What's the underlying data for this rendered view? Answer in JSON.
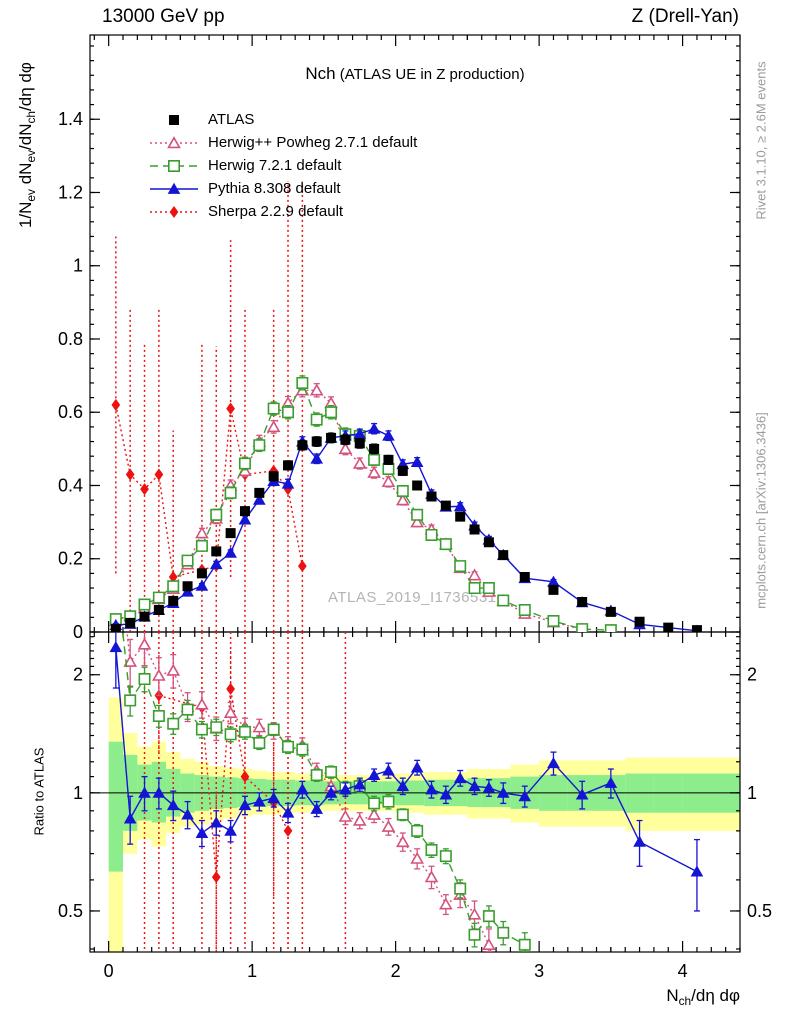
{
  "header": {
    "left": "13000 GeV pp",
    "right": "Z (Drell-Yan)"
  },
  "plot_title": {
    "main": "Nch",
    "paren": " (ATLAS UE in Z production)"
  },
  "watermark": "ATLAS_2019_I1736531",
  "side_notes": {
    "rivet": "Rivet 3.1.10, ≥ 2.6M events",
    "mcplots": "mcplots.cern.ch [arXiv:1306.3436]"
  },
  "colors": {
    "atlas": "#000000",
    "herwigpp": "#d4537c",
    "herwig7": "#3a9d2f",
    "pythia": "#1414d4",
    "sherpa": "#ed1212",
    "band_yellow": "#ffff9c",
    "band_green": "#8ded8d",
    "watermark_gray": "#b4b4b4",
    "note_gray": "#9b9b9b"
  },
  "chart_data": {
    "type": "line",
    "title": "Nch (ATLAS UE in Z production)",
    "xlabel": "N_ch/deta dphi",
    "ylabel": "1/N_ev dN_ev/dN_ch/deta dphi",
    "ratio_label": "Ratio to ATLAS",
    "xlabel_segs": [
      [
        "N"
      ],
      [
        "ch",
        "sub"
      ],
      [
        "/dη dφ"
      ]
    ],
    "ylabel_segs": [
      [
        "1/N"
      ],
      [
        "ev",
        "sub"
      ],
      [
        " dN"
      ],
      [
        "ev",
        "sub"
      ],
      [
        "/dN"
      ],
      [
        "ch",
        "sub"
      ],
      [
        "/dη dφ"
      ]
    ],
    "x_range": [
      -0.13,
      4.4
    ],
    "y_range_main": [
      0,
      1.63
    ],
    "ratio_range": [
      0.393,
      2.57
    ],
    "x_ticks": [
      0,
      1,
      2,
      3,
      4
    ],
    "x_minor_step": 0.1,
    "y_ticks_main": [
      0,
      0.2,
      0.4,
      0.6,
      0.8,
      1.0,
      1.2,
      1.4
    ],
    "y_minor_step_main": 0.04,
    "y_ticks_ratio": [
      0.5,
      1,
      2
    ],
    "grid": false,
    "legend_position": "top-left",
    "x": [
      0.05,
      0.15,
      0.25,
      0.35,
      0.45,
      0.55,
      0.65,
      0.75,
      0.85,
      0.95,
      1.05,
      1.15,
      1.25,
      1.35,
      1.45,
      1.55,
      1.65,
      1.75,
      1.85,
      1.95,
      2.05,
      2.15,
      2.25,
      2.35,
      2.45,
      2.55,
      2.65,
      2.75,
      2.9,
      3.1,
      3.3,
      3.5,
      3.7,
      3.9,
      4.1
    ],
    "series": [
      {
        "name": "ATLAS",
        "color": "#000000",
        "marker": "square",
        "filled": true,
        "line": "none",
        "y": [
          0.008,
          0.025,
          0.042,
          0.06,
          0.085,
          0.125,
          0.16,
          0.22,
          0.27,
          0.33,
          0.38,
          0.425,
          0.455,
          0.51,
          0.52,
          0.53,
          0.525,
          0.515,
          0.5,
          0.47,
          0.44,
          0.4,
          0.37,
          0.345,
          0.315,
          0.28,
          0.245,
          0.21,
          0.15,
          0.115,
          0.082,
          0.055,
          0.028,
          0.012,
          0.005
        ],
        "yerr": [
          0.002,
          0.003,
          0.004,
          0.004,
          0.005,
          0.006,
          0.007,
          0.008,
          0.009,
          0.01,
          0.011,
          0.012,
          0.012,
          0.013,
          0.013,
          0.013,
          0.013,
          0.013,
          0.013,
          0.012,
          0.012,
          0.011,
          0.011,
          0.01,
          0.01,
          0.009,
          0.008,
          0.008,
          0.006,
          0.005,
          0.004,
          0.003,
          0.002,
          0.0012,
          0.001
        ]
      },
      {
        "name": "Herwig++ Powheg 2.7.1 default",
        "color": "#d4537c",
        "marker": "triangle",
        "filled": false,
        "line": "dotted",
        "y": [
          0.03,
          0.045,
          0.065,
          0.09,
          0.118,
          0.185,
          0.27,
          0.31,
          0.4,
          0.44,
          0.52,
          0.56,
          0.625,
          0.66,
          0.66,
          0.625,
          0.5,
          0.46,
          0.435,
          0.41,
          0.36,
          0.3,
          0.28,
          0.24,
          0.175,
          0.155,
          0.11,
          0.085,
          0.05,
          0.027,
          0.007,
          null,
          null,
          null,
          null
        ],
        "yerr": [
          0.005,
          0.006,
          0.007,
          0.008,
          0.009,
          0.011,
          0.013,
          0.014,
          0.015,
          0.016,
          0.017,
          0.017,
          0.018,
          0.018,
          0.018,
          0.017,
          0.016,
          0.015,
          0.015,
          0.014,
          0.013,
          0.012,
          0.012,
          0.011,
          0.009,
          0.009,
          0.007,
          0.006,
          0.004,
          0.003,
          0.0015,
          null,
          null,
          null,
          null
        ],
        "ratio": [
          null,
          2.16,
          2.39,
          1.99,
          2.05,
          1.66,
          1.68,
          1.46,
          1.6,
          1.47,
          1.47,
          1.44,
          1.33,
          1.32,
          1.14,
          1.04,
          0.87,
          0.85,
          0.88,
          0.82,
          0.75,
          0.68,
          0.61,
          0.52,
          0.55,
          0.49,
          0.41,
          null,
          null,
          null,
          null,
          null,
          null,
          null,
          null
        ],
        "ratio_err": [
          null,
          0.3,
          0.28,
          0.22,
          0.2,
          0.14,
          0.13,
          0.1,
          0.1,
          0.08,
          0.07,
          0.07,
          0.06,
          0.06,
          0.05,
          0.05,
          0.04,
          0.04,
          0.04,
          0.04,
          0.04,
          0.04,
          0.04,
          0.03,
          0.04,
          0.04,
          0.04,
          null,
          null,
          null,
          null,
          null,
          null,
          null,
          null
        ],
        "ratio_entry": [
          0.1,
          3.2
        ],
        "ratio_exit": [
          2.8,
          0.27
        ]
      },
      {
        "name": "Herwig 7.2.1 default",
        "color": "#3a9d2f",
        "marker": "square",
        "filled": false,
        "line": "dashed",
        "y": [
          0.035,
          0.043,
          0.075,
          0.094,
          0.125,
          0.195,
          0.235,
          0.32,
          0.38,
          0.46,
          0.51,
          0.61,
          0.6,
          0.68,
          0.58,
          0.6,
          0.54,
          0.535,
          0.47,
          0.445,
          0.385,
          0.32,
          0.265,
          0.24,
          0.18,
          0.12,
          0.12,
          0.086,
          0.06,
          0.03,
          0.008,
          0.005,
          null,
          null,
          null
        ],
        "yerr": [
          0.005,
          0.006,
          0.008,
          0.009,
          0.01,
          0.012,
          0.013,
          0.015,
          0.016,
          0.017,
          0.017,
          0.018,
          0.018,
          0.019,
          0.018,
          0.018,
          0.017,
          0.016,
          0.015,
          0.015,
          0.013,
          0.012,
          0.012,
          0.011,
          0.01,
          0.008,
          0.008,
          0.007,
          0.005,
          0.003,
          0.0015,
          0.001,
          null,
          null,
          null
        ],
        "ratio": [
          null,
          1.72,
          1.95,
          1.57,
          1.5,
          1.63,
          1.45,
          1.47,
          1.41,
          1.43,
          1.34,
          1.45,
          1.31,
          1.29,
          1.11,
          1.13,
          1.03,
          1.04,
          0.94,
          0.95,
          0.88,
          0.8,
          0.715,
          0.69,
          0.57,
          0.435,
          0.485,
          0.44,
          0.41,
          null,
          null,
          null,
          null,
          null,
          null
        ],
        "ratio_err": [
          null,
          0.15,
          0.14,
          0.1,
          0.09,
          0.09,
          0.07,
          0.07,
          0.06,
          0.06,
          0.05,
          0.05,
          0.05,
          0.05,
          0.04,
          0.04,
          0.04,
          0.04,
          0.04,
          0.04,
          0.03,
          0.03,
          0.03,
          0.03,
          0.03,
          0.03,
          0.03,
          0.03,
          0.03,
          null,
          null,
          null,
          null,
          null,
          null
        ],
        "ratio_entry": [
          0.07,
          3.2
        ],
        "ratio_exit": [
          3.02,
          0.28
        ]
      },
      {
        "name": "Pythia 8.308 default",
        "color": "#1414d4",
        "marker": "triangle",
        "filled": true,
        "line": "solid",
        "y": [
          0.019,
          0.022,
          0.042,
          0.06,
          0.079,
          0.11,
          0.126,
          0.185,
          0.216,
          0.307,
          0.361,
          0.412,
          0.405,
          0.52,
          0.473,
          0.53,
          0.536,
          0.541,
          0.555,
          0.536,
          0.458,
          0.464,
          0.377,
          0.342,
          0.343,
          0.291,
          0.252,
          0.21,
          0.147,
          0.137,
          0.081,
          0.058,
          0.021,
          null,
          0.0032
        ],
        "yerr": [
          0.004,
          0.003,
          0.004,
          0.005,
          0.005,
          0.006,
          0.006,
          0.008,
          0.008,
          0.01,
          0.011,
          0.012,
          0.012,
          0.013,
          0.013,
          0.013,
          0.013,
          0.013,
          0.014,
          0.013,
          0.012,
          0.012,
          0.011,
          0.01,
          0.01,
          0.009,
          0.009,
          0.008,
          0.007,
          0.006,
          0.005,
          0.004,
          0.003,
          null,
          0.001
        ],
        "ratio": [
          2.35,
          0.86,
          1.0,
          1.0,
          0.93,
          0.88,
          0.79,
          0.84,
          0.8,
          0.93,
          0.95,
          0.97,
          0.89,
          1.02,
          0.91,
          1.0,
          1.02,
          1.05,
          1.11,
          1.14,
          1.04,
          1.16,
          1.02,
          0.99,
          1.09,
          1.04,
          1.03,
          1.0,
          0.98,
          1.19,
          0.99,
          1.06,
          0.75,
          null,
          0.63
        ],
        "ratio_err": [
          0.5,
          0.12,
          0.1,
          0.09,
          0.08,
          0.07,
          0.06,
          0.06,
          0.05,
          0.05,
          0.05,
          0.05,
          0.05,
          0.05,
          0.04,
          0.04,
          0.04,
          0.04,
          0.04,
          0.05,
          0.05,
          0.05,
          0.05,
          0.05,
          0.05,
          0.05,
          0.05,
          0.06,
          0.06,
          0.08,
          0.08,
          0.09,
          0.1,
          null,
          0.13
        ]
      },
      {
        "name": "Sherpa 2.2.9 default",
        "color": "#ed1212",
        "marker": "diamond",
        "filled": true,
        "line": "dotted",
        "y": [
          0.62,
          0.43,
          0.39,
          0.43,
          0.15,
          null,
          0.17,
          0.18,
          0.61,
          0.43,
          null,
          0.44,
          0.39,
          0.18,
          null,
          null,
          null,
          null,
          null,
          null,
          null,
          null,
          null,
          null,
          null,
          null,
          null,
          null,
          null,
          null,
          null,
          null,
          null,
          null,
          null
        ],
        "yerr": [
          0.46,
          0.45,
          0.4,
          0.45,
          0.4,
          null,
          0.62,
          0.6,
          0.46,
          0.45,
          null,
          0.44,
          0.84,
          1.05,
          null,
          null,
          null,
          null,
          null,
          null,
          null,
          null,
          null,
          null,
          null,
          null,
          null,
          null,
          null,
          null,
          null,
          null,
          null,
          null,
          null
        ],
        "ratio": [
          null,
          null,
          null,
          1.77,
          null,
          null,
          1.65,
          0.61,
          1.84,
          1.1,
          null,
          0.945,
          0.8,
          null,
          null,
          null,
          null,
          null,
          null,
          null,
          null,
          null,
          null,
          null,
          null,
          null,
          null,
          null,
          null,
          null,
          null,
          null,
          null,
          null,
          null
        ],
        "ratio_err": [
          null,
          null,
          null,
          0.5,
          null,
          null,
          0.5,
          0.4,
          0.5,
          0.4,
          null,
          0.4,
          0.4,
          null,
          null,
          null,
          null,
          null,
          null,
          null,
          null,
          null,
          null,
          null,
          null,
          null,
          null,
          null,
          null,
          null,
          null,
          null,
          null,
          null,
          null
        ],
        "ratio_spikes_x": [
          0.25,
          0.35,
          0.45,
          0.65,
          0.75,
          0.85,
          0.95,
          1.15,
          1.25,
          1.35,
          1.65
        ]
      }
    ],
    "atlas_uncertainty_bands": {
      "edges": [
        0,
        0.1,
        0.2,
        0.3,
        0.4,
        0.5,
        0.6,
        0.7,
        0.8,
        0.9,
        1.0,
        1.1,
        1.2,
        1.3,
        1.4,
        1.5,
        1.6,
        1.7,
        1.8,
        1.9,
        2.0,
        2.1,
        2.2,
        2.3,
        2.4,
        2.5,
        2.6,
        2.7,
        2.8,
        3.0,
        3.2,
        3.4,
        3.6,
        3.8,
        4.0,
        4.4
      ],
      "yellow_lo": [
        0.39,
        0.7,
        0.76,
        0.73,
        0.79,
        0.82,
        0.83,
        0.85,
        0.86,
        0.87,
        0.88,
        0.88,
        0.89,
        0.89,
        0.9,
        0.9,
        0.9,
        0.9,
        0.9,
        0.9,
        0.89,
        0.89,
        0.88,
        0.88,
        0.88,
        0.86,
        0.86,
        0.86,
        0.84,
        0.82,
        0.82,
        0.82,
        0.8,
        0.8,
        0.8
      ],
      "yellow_hi": [
        1.75,
        1.42,
        1.31,
        1.35,
        1.27,
        1.22,
        1.2,
        1.17,
        1.16,
        1.15,
        1.14,
        1.13,
        1.13,
        1.12,
        1.12,
        1.11,
        1.11,
        1.11,
        1.11,
        1.11,
        1.12,
        1.12,
        1.13,
        1.13,
        1.13,
        1.15,
        1.15,
        1.15,
        1.18,
        1.21,
        1.21,
        1.21,
        1.23,
        1.23,
        1.23
      ],
      "green_lo": [
        0.63,
        0.8,
        0.85,
        0.84,
        0.87,
        0.89,
        0.9,
        0.91,
        0.915,
        0.92,
        0.92,
        0.925,
        0.925,
        0.93,
        0.93,
        0.935,
        0.935,
        0.935,
        0.935,
        0.935,
        0.93,
        0.93,
        0.925,
        0.925,
        0.925,
        0.92,
        0.92,
        0.92,
        0.91,
        0.9,
        0.9,
        0.9,
        0.89,
        0.89,
        0.89
      ],
      "green_hi": [
        1.35,
        1.25,
        1.18,
        1.2,
        1.15,
        1.12,
        1.11,
        1.1,
        1.095,
        1.09,
        1.085,
        1.08,
        1.08,
        1.075,
        1.075,
        1.07,
        1.07,
        1.07,
        1.07,
        1.07,
        1.075,
        1.075,
        1.08,
        1.08,
        1.08,
        1.09,
        1.09,
        1.09,
        1.1,
        1.11,
        1.11,
        1.11,
        1.12,
        1.12,
        1.12
      ]
    }
  }
}
